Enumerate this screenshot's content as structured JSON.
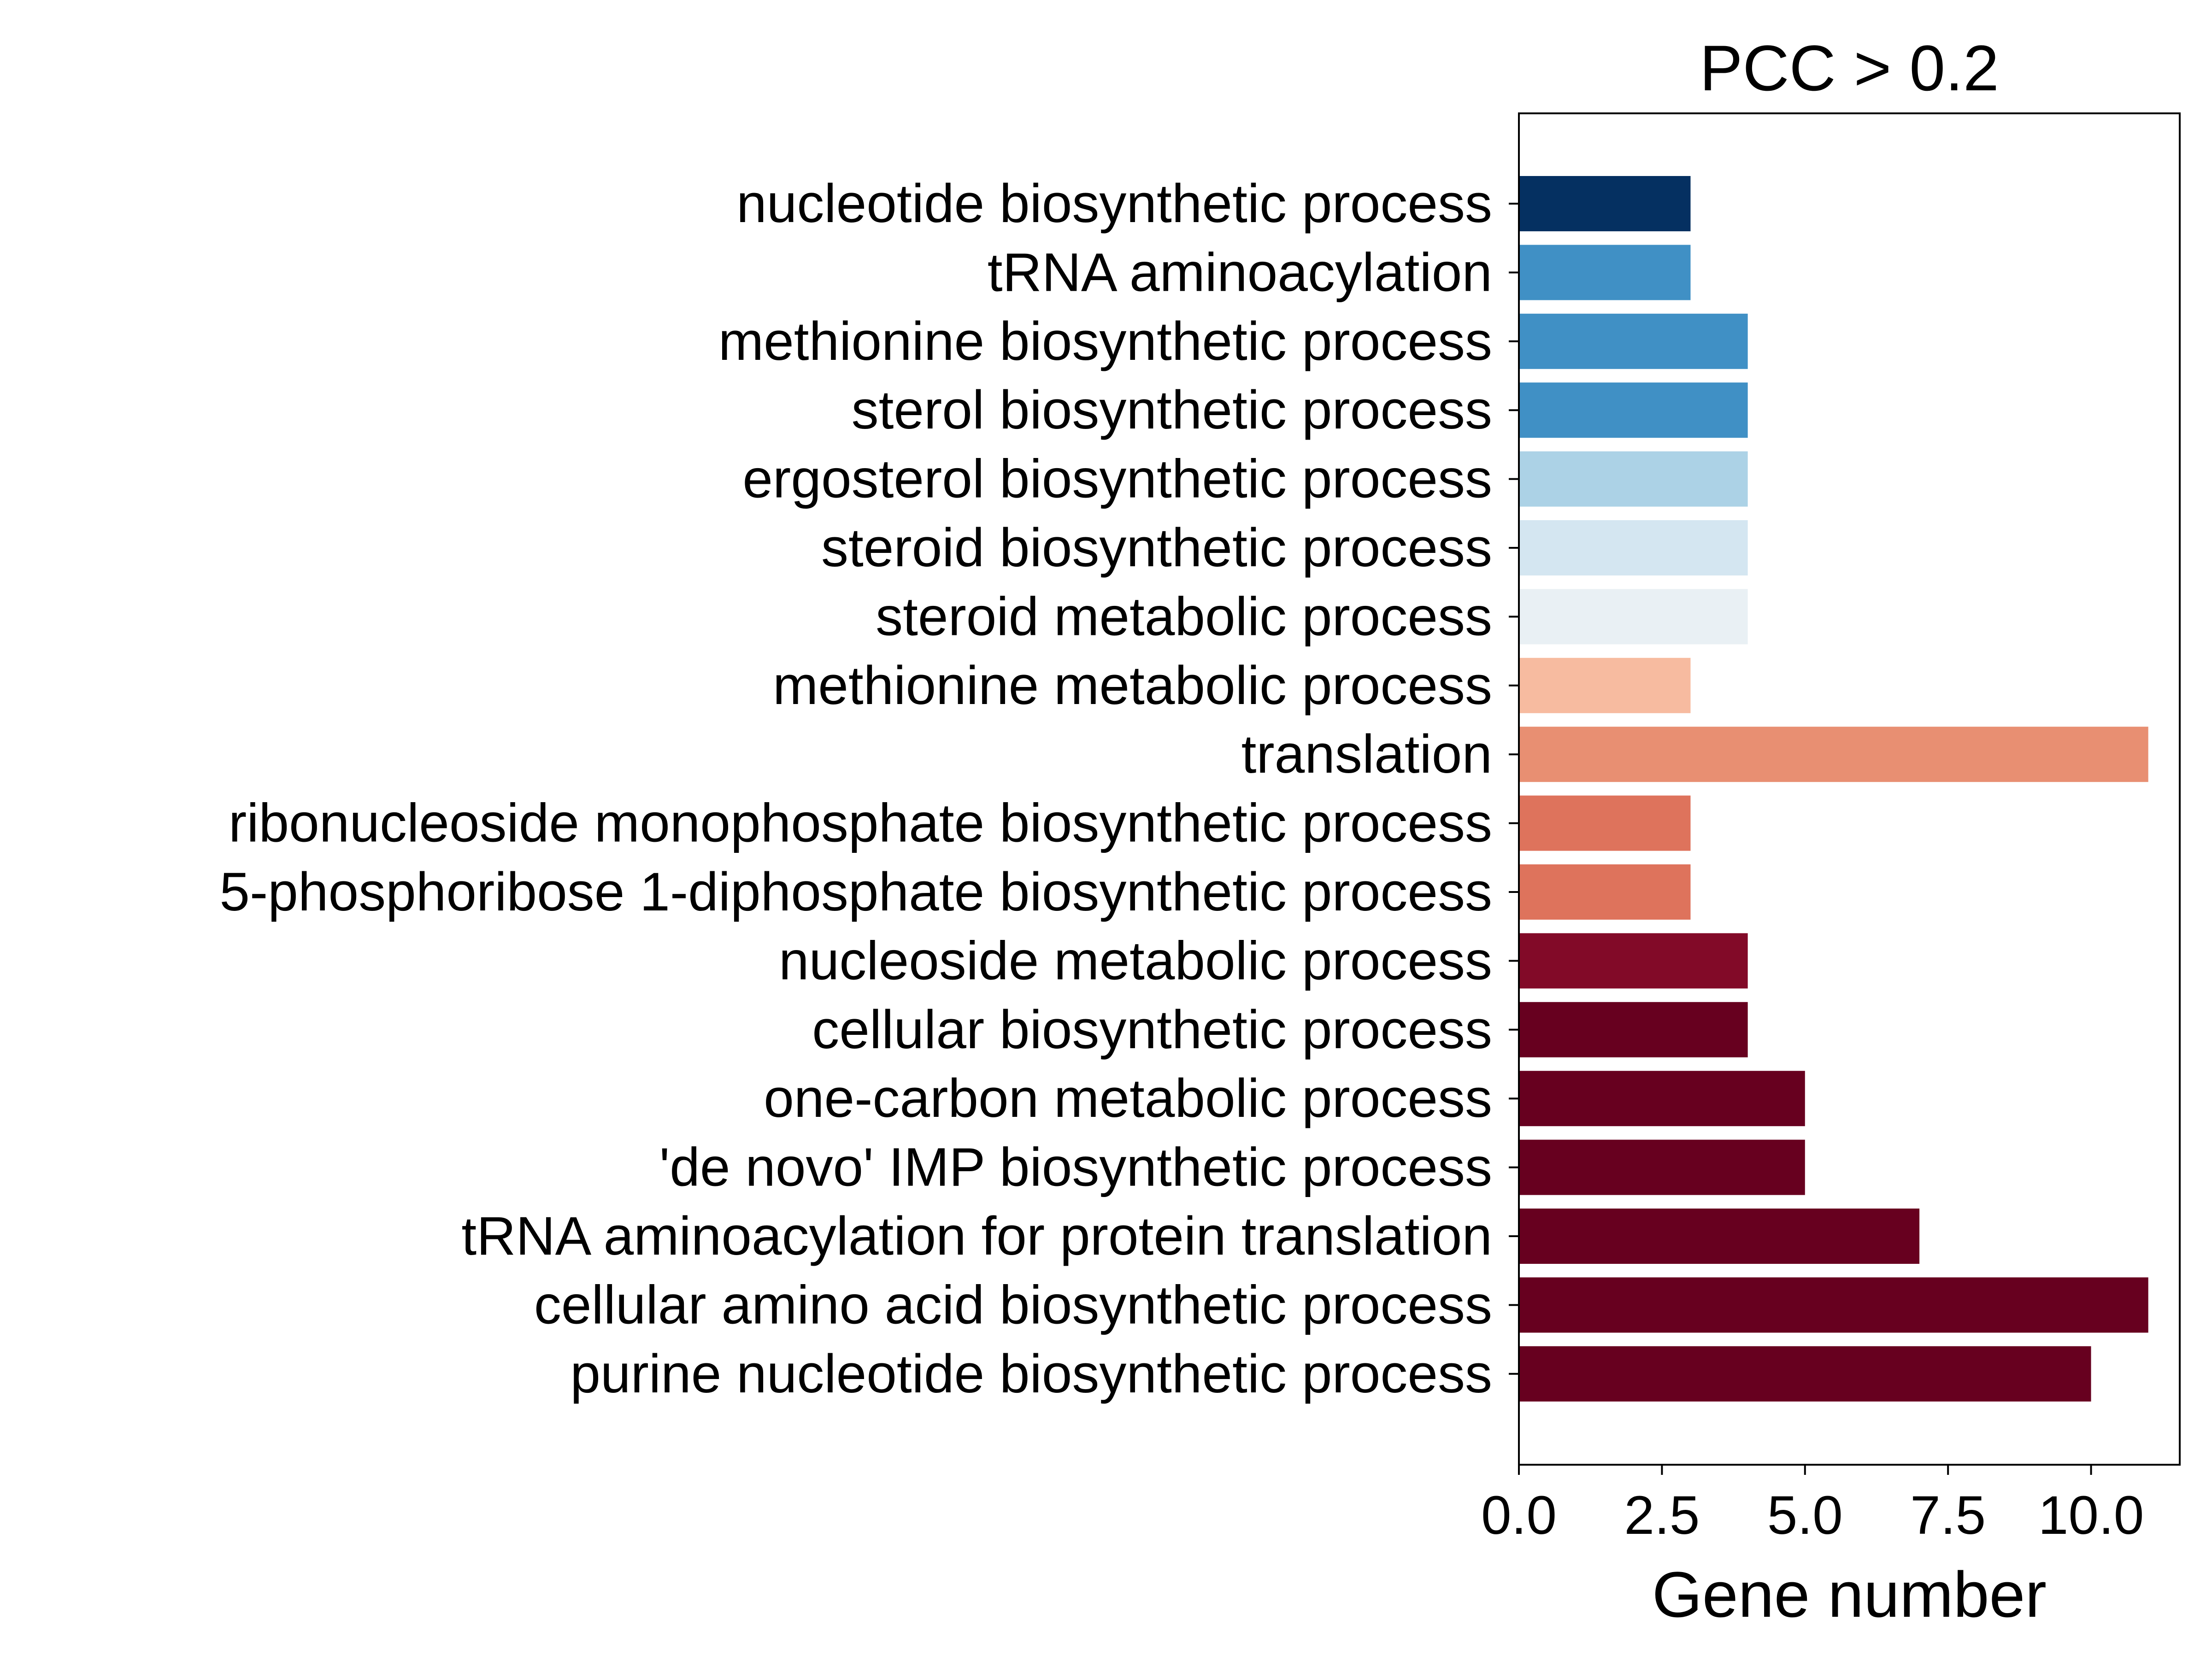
{
  "chart_data": {
    "type": "bar",
    "orientation": "horizontal",
    "title": "PCC > 0.2",
    "xlabel": "Gene number",
    "ylabel": "",
    "xlim": [
      0,
      11.55
    ],
    "xticks": [
      0,
      2.5,
      5,
      7.5,
      10
    ],
    "xtick_labels": [
      "0.0",
      "2.5",
      "5.0",
      "7.5",
      "10.0"
    ],
    "grid": false,
    "categories": [
      "nucleotide biosynthetic process",
      "tRNA aminoacylation",
      "methionine biosynthetic process",
      "sterol biosynthetic process",
      "ergosterol biosynthetic process",
      "steroid biosynthetic process",
      "steroid metabolic process",
      "methionine metabolic process",
      "translation",
      "ribonucleoside monophosphate biosynthetic process",
      "5-phosphoribose 1-diphosphate biosynthetic process",
      "nucleoside metabolic process",
      "cellular biosynthetic process",
      "one-carbon metabolic process",
      "'de novo' IMP biosynthetic process",
      "tRNA aminoacylation for protein translation",
      "cellular amino acid biosynthetic process",
      "purine nucleotide biosynthetic process"
    ],
    "values": [
      3,
      3,
      4,
      4,
      4,
      4,
      4,
      3,
      11,
      3,
      3,
      4,
      4,
      5,
      5,
      7,
      11,
      10
    ],
    "colors": [
      "#053061",
      "#4090c5",
      "#4090c5",
      "#4090c5",
      "#acd2e6",
      "#d4e6f1",
      "#e9f0f4",
      "#f7bba0",
      "#e88f72",
      "#de735c",
      "#de735c",
      "#820a28",
      "#67001f",
      "#67001f",
      "#67001f",
      "#67001f",
      "#67001f",
      "#67001f"
    ]
  }
}
